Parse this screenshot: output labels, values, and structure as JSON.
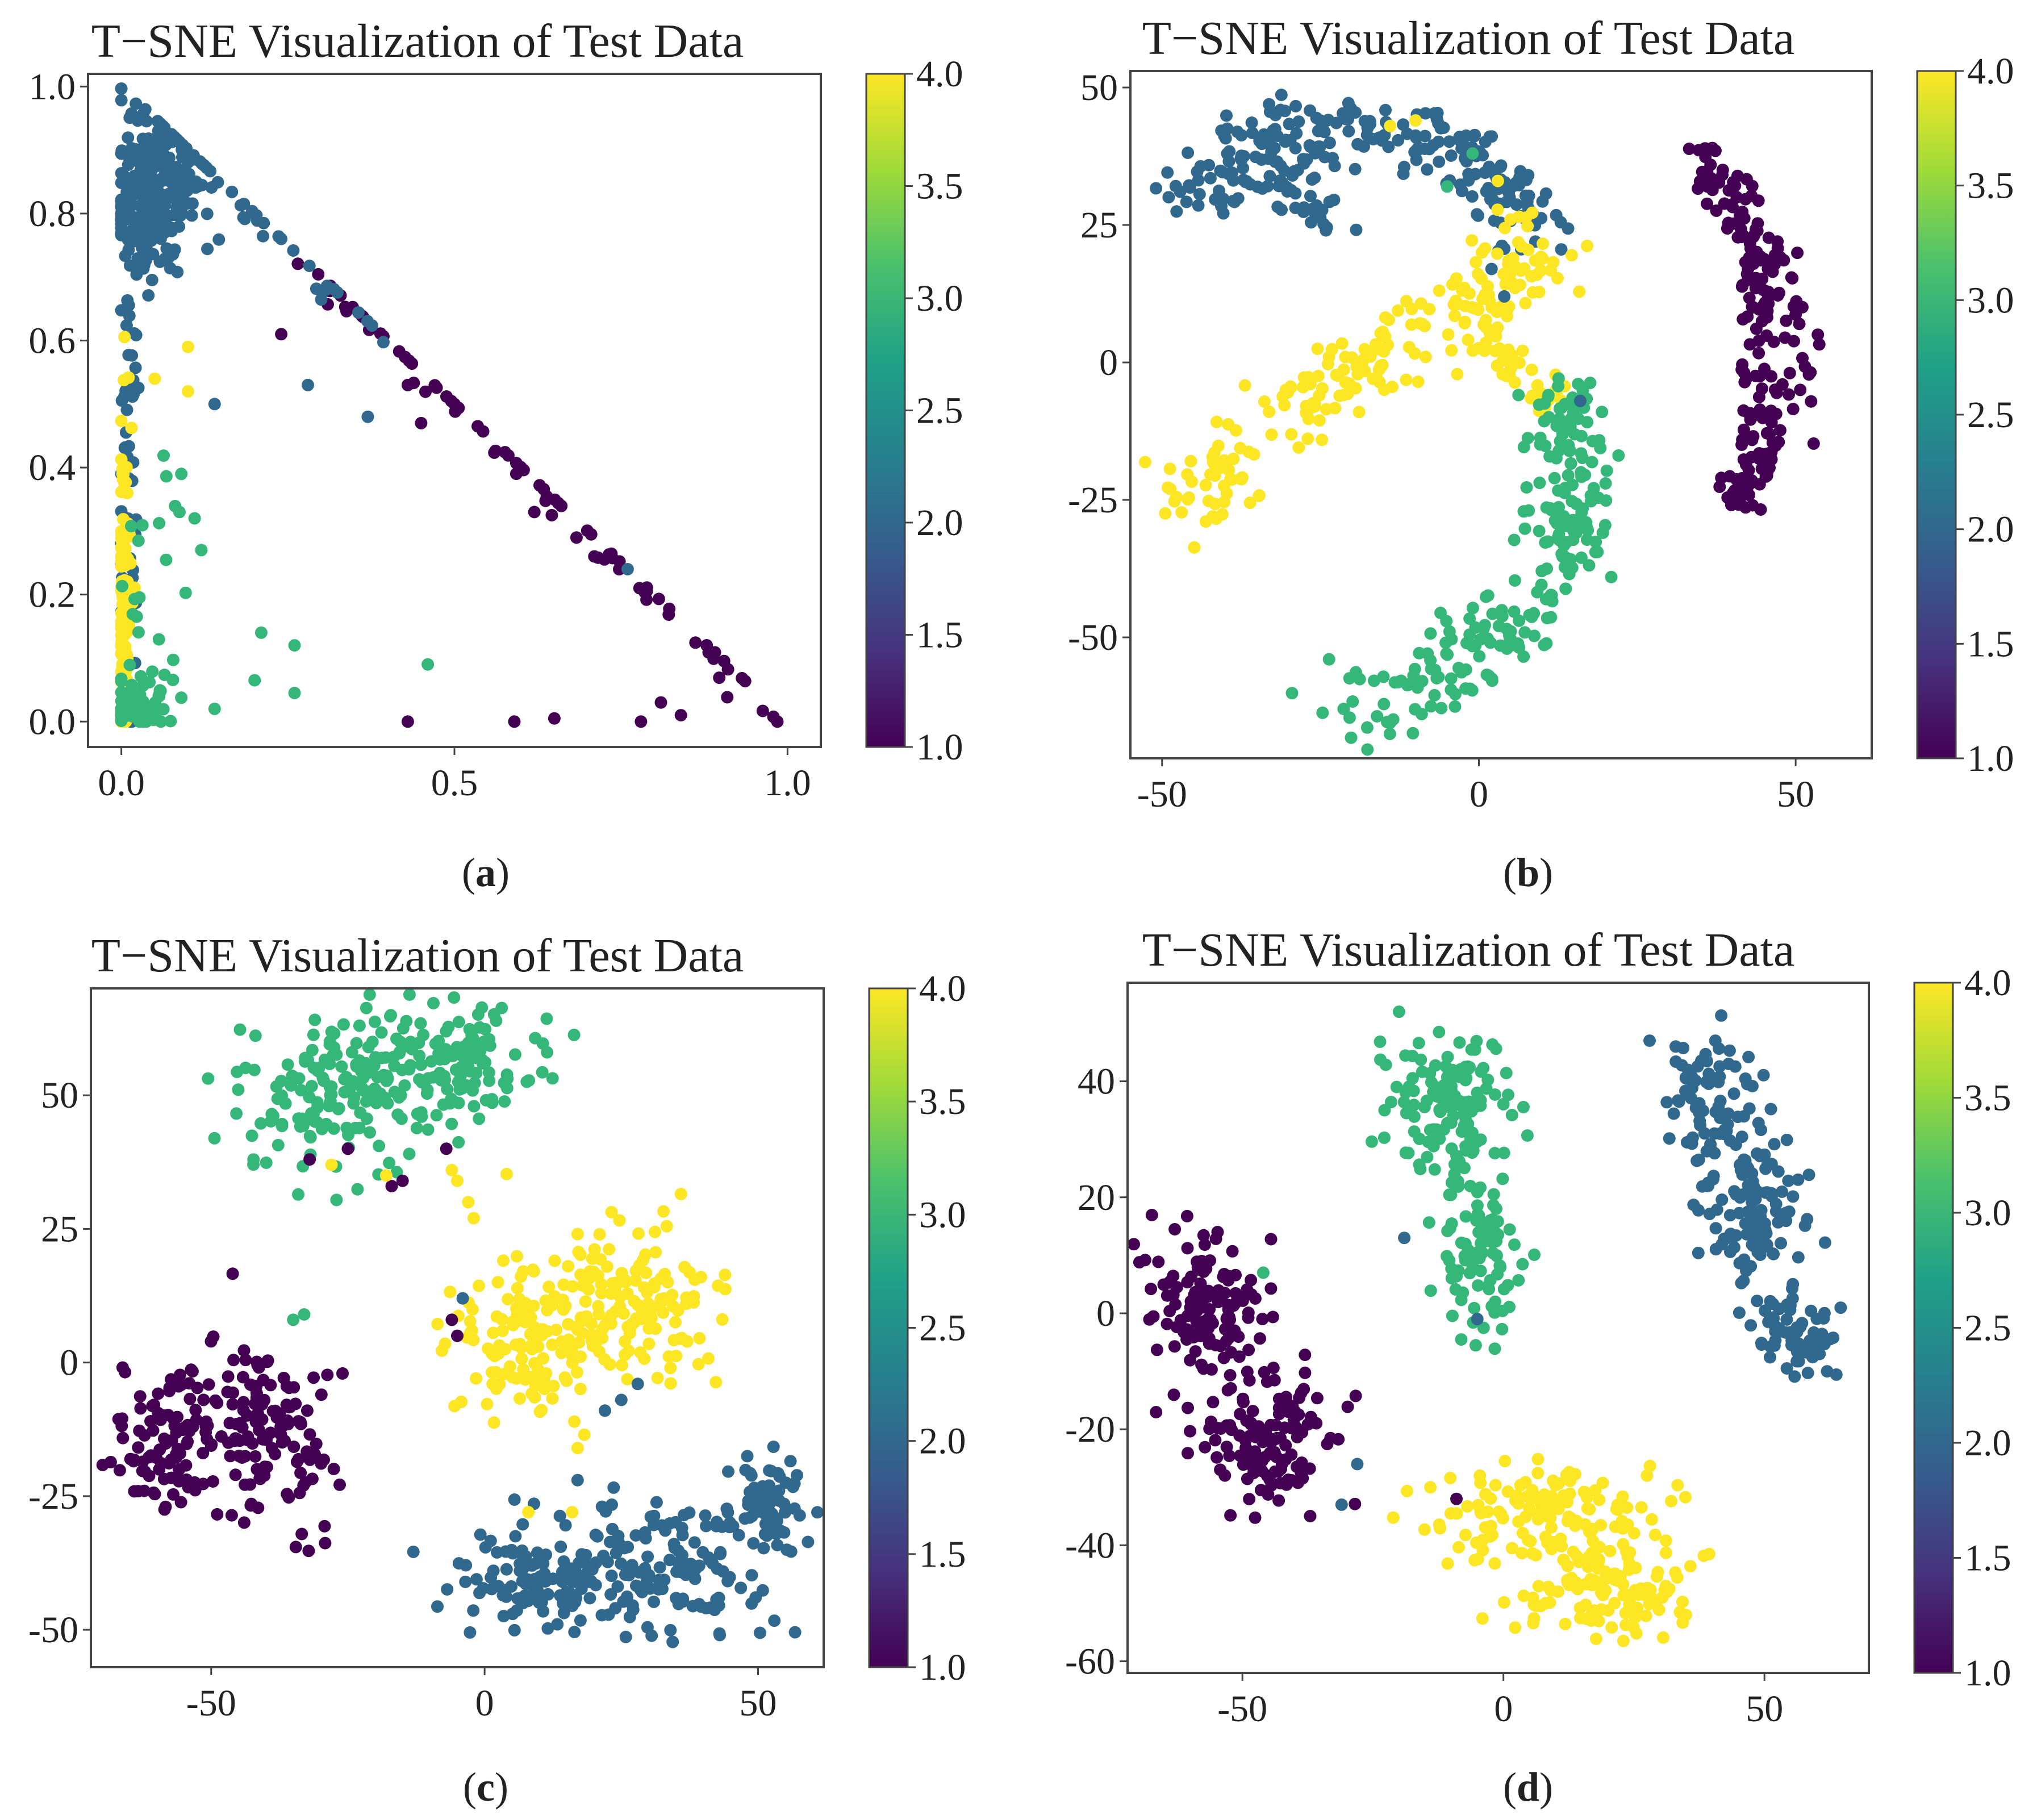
{
  "colors": {
    "v1": "#440154",
    "v2": "#31688e",
    "v3": "#35b779",
    "v4": "#fde725",
    "colorbar_stops": [
      "#440154",
      "#46327e",
      "#365c8d",
      "#277f8e",
      "#1fa187",
      "#4ac16d",
      "#a0da39",
      "#fde725"
    ]
  },
  "chart_data": [
    {
      "id": "a",
      "type": "scatter",
      "title": "T−SNE Visualization of Test Data",
      "caption_open": "(",
      "caption_letter": "a",
      "caption_close": ")",
      "xlim": [
        -0.05,
        1.05
      ],
      "ylim": [
        -0.04,
        1.02
      ],
      "xticks": [
        0.0,
        0.5,
        1.0
      ],
      "xtick_labels": [
        "0.0",
        "0.5",
        "1.0"
      ],
      "yticks": [
        0.0,
        0.2,
        0.4,
        0.6,
        0.8,
        1.0
      ],
      "ytick_labels": [
        "0.0",
        "0.2",
        "0.4",
        "0.6",
        "0.8",
        "1.0"
      ],
      "colorbar": {
        "range": [
          1.0,
          4.0
        ],
        "ticks": [
          1.0,
          1.5,
          2.0,
          2.5,
          3.0,
          3.5,
          4.0
        ],
        "tick_labels": [
          "1.0",
          "1.5",
          "2.0",
          "2.5",
          "3.0",
          "3.5",
          "4.0"
        ]
      },
      "clusters": [
        {
          "label": 2.0,
          "cx": 0.05,
          "cy": 0.84,
          "sx": 0.035,
          "sy": 0.06,
          "n": 260
        },
        {
          "label": 2.0,
          "cx": 0.01,
          "cy": 0.45,
          "sx": 0.008,
          "sy": 0.2,
          "n": 60
        },
        {
          "label": 4.0,
          "cx": 0.005,
          "cy": 0.2,
          "sx": 0.006,
          "sy": 0.14,
          "n": 120
        },
        {
          "label": 3.0,
          "cx": 0.03,
          "cy": 0.03,
          "sx": 0.03,
          "sy": 0.025,
          "n": 60
        },
        {
          "label": 3.0,
          "cx": 0.04,
          "cy": 0.2,
          "sx": 0.03,
          "sy": 0.1,
          "n": 20
        }
      ],
      "segments": [
        {
          "label": 1.0,
          "from": [
            0.27,
            0.73
          ],
          "to": [
            1.0,
            0.0
          ],
          "jitter": 0.012,
          "n": 80
        },
        {
          "label": 2.0,
          "from": [
            0.08,
            0.92
          ],
          "to": [
            0.42,
            0.58
          ],
          "jitter": 0.02,
          "n": 30
        }
      ],
      "points": [
        {
          "x": 0.43,
          "y": 0.0,
          "label": 1.0
        },
        {
          "x": 0.59,
          "y": 0.0,
          "label": 1.0
        },
        {
          "x": 0.65,
          "y": 0.005,
          "label": 1.0
        },
        {
          "x": 0.78,
          "y": 0.0,
          "label": 1.0
        },
        {
          "x": 0.81,
          "y": 0.03,
          "label": 1.0
        },
        {
          "x": 0.84,
          "y": 0.01,
          "label": 1.0
        },
        {
          "x": 0.21,
          "y": 0.14,
          "label": 3.0
        },
        {
          "x": 0.26,
          "y": 0.12,
          "label": 3.0
        },
        {
          "x": 0.2,
          "y": 0.065,
          "label": 3.0
        },
        {
          "x": 0.26,
          "y": 0.045,
          "label": 3.0
        },
        {
          "x": 0.46,
          "y": 0.09,
          "label": 3.0
        },
        {
          "x": 0.14,
          "y": 0.02,
          "label": 3.0
        },
        {
          "x": 0.1,
          "y": 0.52,
          "label": 4.0
        },
        {
          "x": 0.1,
          "y": 0.59,
          "label": 4.0
        },
        {
          "x": 0.05,
          "y": 0.54,
          "label": 4.0
        },
        {
          "x": 0.14,
          "y": 0.5,
          "label": 2.0
        },
        {
          "x": 0.09,
          "y": 0.39,
          "label": 3.0
        },
        {
          "x": 0.12,
          "y": 0.27,
          "label": 3.0
        },
        {
          "x": 0.11,
          "y": 0.32,
          "label": 3.0
        },
        {
          "x": 0.28,
          "y": 0.53,
          "label": 2.0
        },
        {
          "x": 0.24,
          "y": 0.61,
          "label": 1.0
        },
        {
          "x": 0.37,
          "y": 0.48,
          "label": 2.0
        },
        {
          "x": 0.45,
          "y": 0.47,
          "label": 1.0
        },
        {
          "x": 0.43,
          "y": 0.53,
          "label": 1.0
        },
        {
          "x": 0.5,
          "y": 0.5,
          "label": 1.0
        },
        {
          "x": 0.6,
          "y": 0.4,
          "label": 1.0
        },
        {
          "x": 0.62,
          "y": 0.33,
          "label": 1.0
        },
        {
          "x": 0.71,
          "y": 0.26,
          "label": 1.0
        },
        {
          "x": 0.76,
          "y": 0.24,
          "label": 2.0
        }
      ]
    },
    {
      "id": "b",
      "type": "scatter",
      "title": "T−SNE Visualization of Test Data",
      "caption_open": "(",
      "caption_letter": "b",
      "caption_close": ")",
      "xlim": [
        -55,
        62
      ],
      "ylim": [
        -72,
        53
      ],
      "xticks": [
        -50,
        0,
        50
      ],
      "xtick_labels": [
        "-50",
        "0",
        "50"
      ],
      "yticks": [
        -50,
        -25,
        0,
        25,
        50
      ],
      "ytick_labels": [
        "-50",
        "-25",
        "0",
        "25",
        "50"
      ],
      "colorbar": {
        "range": [
          1.0,
          4.0
        ],
        "ticks": [
          1.0,
          1.5,
          2.0,
          2.5,
          3.0,
          3.5,
          4.0
        ],
        "tick_labels": [
          "1.0",
          "1.5",
          "2.0",
          "2.5",
          "3.0",
          "3.5",
          "4.0"
        ]
      },
      "paths": [
        {
          "label": 2.0,
          "pts": [
            [
              -48,
              28
            ],
            [
              -40,
              33
            ],
            [
              -35,
              40
            ],
            [
              -30,
              42
            ],
            [
              -20,
              43
            ],
            [
              -10,
              41
            ],
            [
              -2,
              39
            ],
            [
              3,
              34
            ],
            [
              5,
              28
            ],
            [
              7,
              22
            ]
          ],
          "jitter": 3.0,
          "n": 240
        },
        {
          "label": 2.0,
          "pts": [
            [
              -33,
              37
            ],
            [
              -28,
              30
            ],
            [
              -22,
              24
            ]
          ],
          "jitter": 2.5,
          "n": 40
        },
        {
          "label": 4.0,
          "pts": [
            [
              -48,
              -25
            ],
            [
              -40,
              -18
            ],
            [
              -30,
              -8
            ],
            [
              -20,
              -2
            ],
            [
              -10,
              4
            ],
            [
              0,
              10
            ],
            [
              5,
              16
            ],
            [
              7,
              22
            ]
          ],
          "jitter": 4.0,
          "n": 220
        },
        {
          "label": 4.0,
          "pts": [
            [
              0,
              5
            ],
            [
              4,
              0
            ],
            [
              8,
              -4
            ],
            [
              12,
              -6
            ]
          ],
          "jitter": 2.0,
          "n": 40
        },
        {
          "label": 3.0,
          "pts": [
            [
              12,
              -6
            ],
            [
              15,
              -14
            ],
            [
              14,
              -25
            ],
            [
              13,
              -35
            ],
            [
              8,
              -45
            ],
            [
              0,
              -53
            ],
            [
              -10,
              -60
            ],
            [
              -25,
              -65
            ]
          ],
          "jitter": 3.5,
          "n": 240
        },
        {
          "label": 1.0,
          "pts": [
            [
              34,
              40
            ],
            [
              40,
              30
            ],
            [
              47,
              18
            ],
            [
              50,
              5
            ],
            [
              48,
              -10
            ],
            [
              45,
              -20
            ],
            [
              40,
              -25
            ]
          ],
          "jitter": 1.8,
          "n": 110
        },
        {
          "label": 1.0,
          "pts": [
            [
              36,
              36
            ],
            [
              41,
              28
            ],
            [
              44,
              18
            ],
            [
              45,
              10
            ],
            [
              44,
              0
            ],
            [
              43,
              -12
            ],
            [
              40,
              -25
            ]
          ],
          "jitter": 1.8,
          "n": 110
        }
      ],
      "points": [
        {
          "x": 3,
          "y": 33,
          "label": 4.0
        },
        {
          "x": -10,
          "y": 44,
          "label": 4.0
        },
        {
          "x": 5,
          "y": 26,
          "label": 4.0
        },
        {
          "x": -14,
          "y": 43,
          "label": 4.0
        },
        {
          "x": -1,
          "y": 38,
          "label": 3.0
        },
        {
          "x": 2,
          "y": 17,
          "label": 2.0
        },
        {
          "x": 4,
          "y": 12,
          "label": 2.0
        },
        {
          "x": 16,
          "y": -7,
          "label": 2.0
        },
        {
          "x": 20,
          "y": -22,
          "label": 3.0
        },
        {
          "x": -5,
          "y": 32,
          "label": 3.0
        }
      ]
    },
    {
      "id": "c",
      "type": "scatter",
      "title": "T−SNE Visualization of Test Data",
      "caption_open": "(",
      "caption_letter": "c",
      "caption_close": ")",
      "xlim": [
        -72,
        62
      ],
      "ylim": [
        -57,
        70
      ],
      "xticks": [
        -50,
        0,
        50
      ],
      "xtick_labels": [
        "-50",
        "0",
        "50"
      ],
      "yticks": [
        -50,
        -25,
        0,
        25,
        50
      ],
      "ytick_labels": [
        "-50",
        "-25",
        "0",
        "25",
        "50"
      ],
      "colorbar": {
        "range": [
          1.0,
          4.0
        ],
        "ticks": [
          1.0,
          1.5,
          2.0,
          2.5,
          3.0,
          3.5,
          4.0
        ],
        "tick_labels": [
          "1.0",
          "1.5",
          "2.0",
          "2.5",
          "3.0",
          "3.5",
          "4.0"
        ]
      },
      "clusters": [
        {
          "label": 3.0,
          "cx": -28,
          "cy": 50,
          "sx": 8,
          "sy": 7,
          "n": 140
        },
        {
          "label": 3.0,
          "cx": -6,
          "cy": 56,
          "sx": 9,
          "sy": 6,
          "n": 140
        },
        {
          "label": 1.0,
          "cx": -58,
          "cy": -15,
          "sx": 6,
          "sy": 6,
          "n": 110
        },
        {
          "label": 1.0,
          "cx": -40,
          "cy": -12,
          "sx": 6,
          "sy": 9,
          "n": 120
        },
        {
          "label": 4.0,
          "cx": 8,
          "cy": 5,
          "sx": 7,
          "sy": 8,
          "n": 130
        },
        {
          "label": 4.0,
          "cx": 28,
          "cy": 12,
          "sx": 7,
          "sy": 7,
          "n": 130
        },
        {
          "label": 2.0,
          "cx": 12,
          "cy": -40,
          "sx": 9,
          "sy": 5,
          "n": 130
        },
        {
          "label": 2.0,
          "cx": 35,
          "cy": -38,
          "sx": 8,
          "sy": 6,
          "n": 120
        },
        {
          "label": 2.0,
          "cx": 52,
          "cy": -27,
          "sx": 4,
          "sy": 5,
          "n": 60
        }
      ],
      "points": [
        {
          "x": -32,
          "y": 38,
          "label": 1.0
        },
        {
          "x": -25,
          "y": 40,
          "label": 1.0
        },
        {
          "x": -15,
          "y": 34,
          "label": 1.0
        },
        {
          "x": -17,
          "y": 33,
          "label": 1.0
        },
        {
          "x": -7,
          "y": 40,
          "label": 1.0
        },
        {
          "x": -28,
          "y": 37,
          "label": 4.0
        },
        {
          "x": -18,
          "y": 35,
          "label": 4.0
        },
        {
          "x": -3,
          "y": 30,
          "label": 4.0
        },
        {
          "x": -2,
          "y": 27,
          "label": 4.0
        },
        {
          "x": -6,
          "y": 36,
          "label": 4.0
        },
        {
          "x": -5,
          "y": 34,
          "label": 4.0
        },
        {
          "x": -6,
          "y": 8,
          "label": 1.0
        },
        {
          "x": -5,
          "y": 5,
          "label": 1.0
        },
        {
          "x": -4,
          "y": 12,
          "label": 2.0
        },
        {
          "x": 25,
          "y": -7,
          "label": 2.0
        },
        {
          "x": 22,
          "y": -9,
          "label": 2.0
        },
        {
          "x": 28,
          "y": -4,
          "label": 2.0
        },
        {
          "x": 17,
          "y": -16,
          "label": 4.0
        },
        {
          "x": 17,
          "y": -22,
          "label": 2.0
        },
        {
          "x": 8,
          "y": -28,
          "label": 4.0
        },
        {
          "x": 16,
          "y": -28,
          "label": 4.0
        },
        {
          "x": -33,
          "y": 9,
          "label": 3.0
        },
        {
          "x": -35,
          "y": 8,
          "label": 3.0
        }
      ]
    },
    {
      "id": "d",
      "type": "scatter",
      "title": "T−SNE Visualization of Test Data",
      "caption_open": "(",
      "caption_letter": "d",
      "caption_close": ")",
      "xlim": [
        -72,
        70
      ],
      "ylim": [
        -62,
        57
      ],
      "xticks": [
        -50,
        0,
        50
      ],
      "xtick_labels": [
        "-50",
        "0",
        "50"
      ],
      "yticks": [
        -60,
        -40,
        -20,
        0,
        20,
        40
      ],
      "ytick_labels": [
        "-60",
        "-40",
        "-20",
        "0",
        "20",
        "40"
      ],
      "colorbar": {
        "range": [
          1.0,
          4.0
        ],
        "ticks": [
          1.0,
          1.5,
          2.0,
          2.5,
          3.0,
          3.5,
          4.0
        ],
        "tick_labels": [
          "1.0",
          "1.5",
          "2.0",
          "2.5",
          "3.0",
          "3.5",
          "4.0"
        ]
      },
      "clusters": [
        {
          "label": 1.0,
          "cx": -57,
          "cy": 0,
          "sx": 5,
          "sy": 6,
          "n": 130
        },
        {
          "label": 1.0,
          "cx": -45,
          "cy": -22,
          "sx": 6,
          "sy": 6,
          "n": 130
        },
        {
          "label": 3.0,
          "cx": -10,
          "cy": 35,
          "sx": 6,
          "sy": 6,
          "n": 140
        },
        {
          "label": 3.0,
          "cx": -4,
          "cy": 10,
          "sx": 4,
          "sy": 7,
          "n": 90
        },
        {
          "label": 2.0,
          "cx": 40,
          "cy": 38,
          "sx": 4,
          "sy": 5,
          "n": 70
        },
        {
          "label": 2.0,
          "cx": 47,
          "cy": 18,
          "sx": 5,
          "sy": 7,
          "n": 120
        },
        {
          "label": 2.0,
          "cx": 56,
          "cy": -3,
          "sx": 4,
          "sy": 4,
          "n": 70
        },
        {
          "label": 4.0,
          "cx": 8,
          "cy": -35,
          "sx": 10,
          "sy": 4,
          "n": 140
        },
        {
          "label": 4.0,
          "cx": 20,
          "cy": -48,
          "sx": 8,
          "sy": 4,
          "n": 120
        }
      ],
      "points": [
        {
          "x": -20,
          "y": 52,
          "label": 3.0
        },
        {
          "x": -19,
          "y": 13,
          "label": 2.0
        },
        {
          "x": -5,
          "y": -1,
          "label": 2.0
        },
        {
          "x": -46,
          "y": 7,
          "label": 3.0
        },
        {
          "x": -28,
          "y": -26,
          "label": 2.0
        },
        {
          "x": -31,
          "y": -33,
          "label": 2.0
        },
        {
          "x": -9,
          "y": -32,
          "label": 1.0
        },
        {
          "x": -14,
          "y": -30,
          "label": 4.0
        },
        {
          "x": 28,
          "y": 47,
          "label": 2.0
        },
        {
          "x": 33,
          "y": 46,
          "label": 2.0
        },
        {
          "x": 62,
          "y": -10,
          "label": 2.0
        }
      ]
    }
  ]
}
